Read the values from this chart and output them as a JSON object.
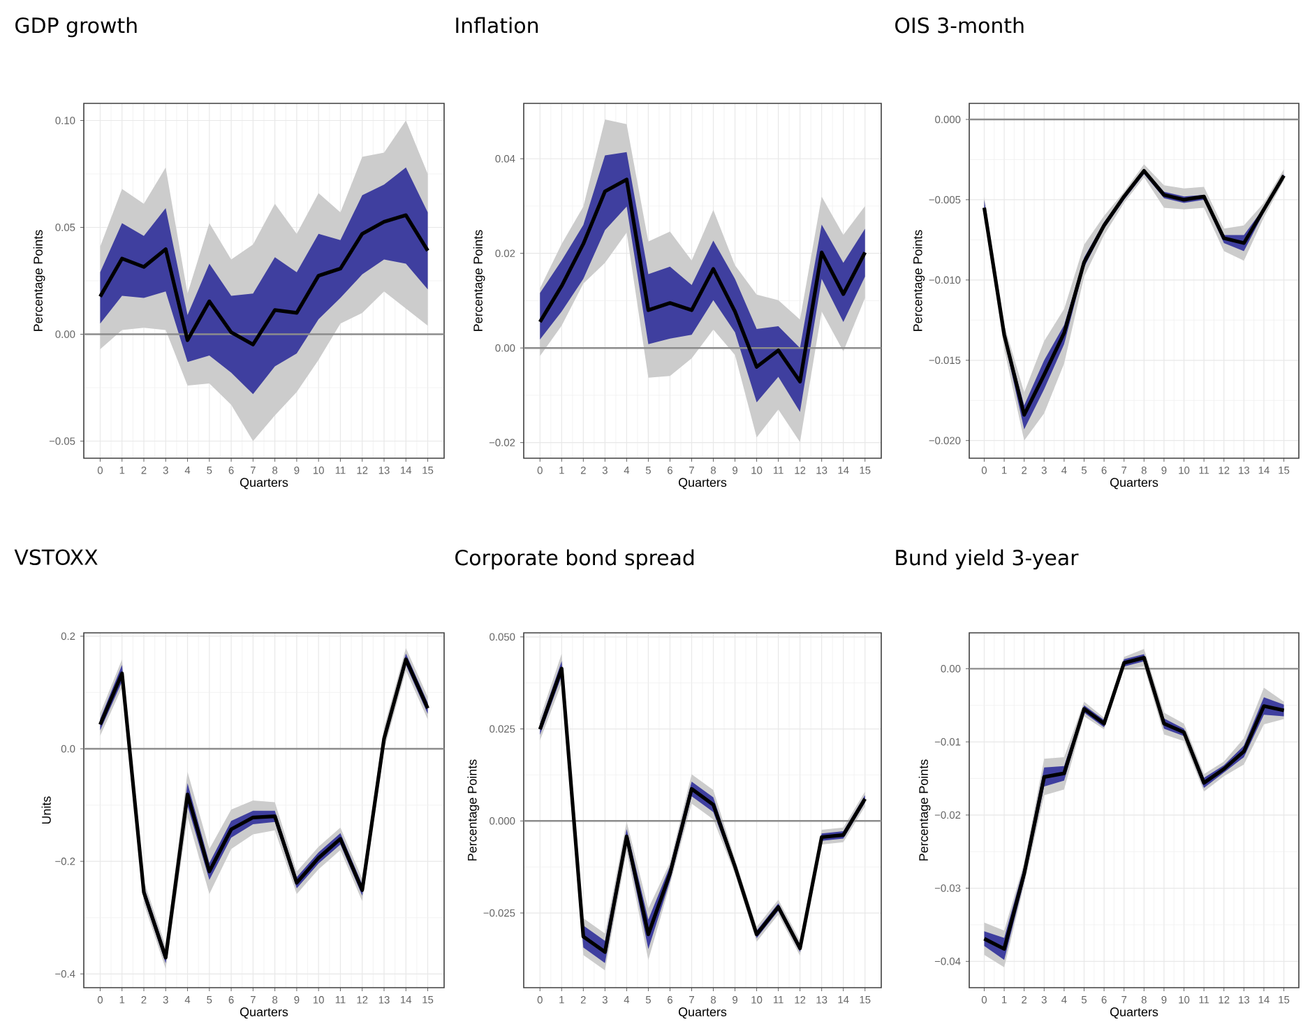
{
  "chart_data": [
    {
      "type": "line",
      "title": "GDP growth",
      "xlabel": "Quarters",
      "ylabel": "Percentage Points",
      "grid": true,
      "x": [
        0,
        1,
        2,
        3,
        4,
        5,
        6,
        7,
        8,
        9,
        10,
        11,
        12,
        13,
        14,
        15
      ],
      "xlim": [
        -0.75,
        15.75
      ],
      "xticks": [
        0,
        1,
        2,
        3,
        4,
        5,
        6,
        7,
        8,
        9,
        10,
        11,
        12,
        13,
        14,
        15
      ],
      "ylim": [
        -0.058,
        0.108
      ],
      "yticks": [
        {
          "value": -0.05,
          "label": "−0.05"
        },
        {
          "value": 0,
          "label": "0.00"
        },
        {
          "value": 0.05,
          "label": "0.05"
        },
        {
          "value": 0.1,
          "label": "0.10"
        }
      ],
      "ref_lines": [
        {
          "axis": "y",
          "value": 0,
          "color": "#8c8c8c"
        }
      ],
      "series": [
        {
          "color": "#cccccc",
          "values": [
            null,
            null,
            null,
            null,
            null,
            null,
            null,
            null,
            null,
            null,
            null,
            null,
            null,
            null,
            null,
            null
          ],
          "lower": [
            -0.007,
            0.002,
            0.003,
            0.002,
            -0.024,
            -0.023,
            -0.033,
            -0.05,
            -0.038,
            -0.027,
            -0.012,
            0.005,
            0.01,
            0.02,
            0.012,
            0.004
          ],
          "upper": [
            0.041,
            0.068,
            0.061,
            0.078,
            0.019,
            0.052,
            0.035,
            0.042,
            0.061,
            0.047,
            0.066,
            0.057,
            0.083,
            0.085,
            0.1,
            0.075
          ]
        },
        {
          "color": "#3f3f9f",
          "values": [
            null,
            null,
            null,
            null,
            null,
            null,
            null,
            null,
            null,
            null,
            null,
            null,
            null,
            null,
            null,
            null
          ],
          "lower": [
            0.005,
            0.018,
            0.017,
            0.02,
            -0.013,
            -0.01,
            -0.018,
            -0.028,
            -0.015,
            -0.009,
            0.007,
            0.017,
            0.028,
            0.035,
            0.033,
            0.021
          ],
          "upper": [
            0.029,
            0.052,
            0.046,
            0.059,
            0.009,
            0.033,
            0.018,
            0.019,
            0.036,
            0.029,
            0.047,
            0.044,
            0.065,
            0.07,
            0.078,
            0.057
          ]
        },
        {
          "color": "#000000",
          "values": [
            0.0176,
            0.0354,
            0.0315,
            0.0398,
            -0.0028,
            0.0154,
            0.0009,
            -0.0048,
            0.0113,
            0.01,
            0.0274,
            0.0307,
            0.047,
            0.0526,
            0.0557,
            0.0391
          ]
        }
      ]
    },
    {
      "type": "line",
      "title": "Inflation",
      "xlabel": "Quarters",
      "ylabel": "Percentage Points",
      "grid": true,
      "x": [
        0,
        1,
        2,
        3,
        4,
        5,
        6,
        7,
        8,
        9,
        10,
        11,
        12,
        13,
        14,
        15
      ],
      "xlim": [
        -0.75,
        15.75
      ],
      "xticks": [
        0,
        1,
        2,
        3,
        4,
        5,
        6,
        7,
        8,
        9,
        10,
        11,
        12,
        13,
        14,
        15
      ],
      "ylim": [
        -0.0233,
        0.0517
      ],
      "yticks": [
        {
          "value": -0.02,
          "label": "−0.02"
        },
        {
          "value": 0,
          "label": "0.00"
        },
        {
          "value": 0.02,
          "label": "0.02"
        },
        {
          "value": 0.04,
          "label": "0.04"
        }
      ],
      "ref_lines": [
        {
          "axis": "y",
          "value": 0,
          "color": "#8c8c8c"
        }
      ],
      "series": [
        {
          "color": "#cccccc",
          "values": [
            null,
            null,
            null,
            null,
            null,
            null,
            null,
            null,
            null,
            null,
            null,
            null,
            null,
            null,
            null,
            null
          ],
          "lower": [
            -0.0017,
            0.0047,
            0.0136,
            0.018,
            0.0244,
            -0.0063,
            -0.0059,
            -0.0022,
            0.0039,
            -0.0015,
            -0.0189,
            -0.013,
            -0.0199,
            0.0077,
            -0.0007,
            0.0106
          ],
          "upper": [
            0.0126,
            0.022,
            0.0299,
            0.0483,
            0.0473,
            0.0225,
            0.0246,
            0.0185,
            0.0292,
            0.0175,
            0.0113,
            0.0101,
            0.006,
            0.032,
            0.0239,
            0.03
          ]
        },
        {
          "color": "#3f3f9f",
          "values": [
            null,
            null,
            null,
            null,
            null,
            null,
            null,
            null,
            null,
            null,
            null,
            null,
            null,
            null,
            null,
            null
          ],
          "lower": [
            0.0018,
            0.0077,
            0.0146,
            0.0249,
            0.0299,
            0.0008,
            0.002,
            0.0028,
            0.0101,
            0.0033,
            -0.0115,
            -0.0061,
            -0.0135,
            0.0146,
            0.0055,
            0.0151
          ],
          "upper": [
            0.0116,
            0.0185,
            0.026,
            0.0407,
            0.0414,
            0.0156,
            0.0172,
            0.0133,
            0.0227,
            0.0146,
            0.004,
            0.0046,
            0.0,
            0.0261,
            0.018,
            0.0252
          ]
        },
        {
          "color": "#000000",
          "values": [
            0.0055,
            0.0131,
            0.022,
            0.0331,
            0.0356,
            0.008,
            0.0095,
            0.008,
            0.0167,
            0.0077,
            -0.004,
            -0.0005,
            -0.0071,
            0.0202,
            0.0114,
            0.0202
          ]
        }
      ]
    },
    {
      "type": "line",
      "title": "OIS 3-month",
      "xlabel": "Quarters",
      "ylabel": "Percentage Points",
      "grid": true,
      "x": [
        0,
        1,
        2,
        3,
        4,
        5,
        6,
        7,
        8,
        9,
        10,
        11,
        12,
        13,
        14,
        15
      ],
      "xlim": [
        -0.75,
        15.75
      ],
      "xticks": [
        0,
        1,
        2,
        3,
        4,
        5,
        6,
        7,
        8,
        9,
        10,
        11,
        12,
        13,
        14,
        15
      ],
      "ylim": [
        -0.0211,
        0.001
      ],
      "yticks": [
        {
          "value": -0.02,
          "label": "−0.020"
        },
        {
          "value": -0.015,
          "label": "−0.015"
        },
        {
          "value": -0.01,
          "label": "−0.010"
        },
        {
          "value": -0.005,
          "label": "−0.005"
        },
        {
          "value": 0,
          "label": "0.000"
        }
      ],
      "ref_lines": [
        {
          "axis": "y",
          "value": 0,
          "color": "#8c8c8c"
        }
      ],
      "series": [
        {
          "color": "#cccccc",
          "values": [
            null,
            null,
            null,
            null,
            null,
            null,
            null,
            null,
            null,
            null,
            null,
            null,
            null,
            null,
            null,
            null
          ],
          "lower": [
            -0.006,
            -0.0143,
            -0.02,
            -0.0183,
            -0.0152,
            -0.0098,
            -0.0072,
            -0.0052,
            -0.0036,
            -0.0055,
            -0.0056,
            -0.0055,
            -0.0082,
            -0.0088,
            -0.0061,
            -0.0038
          ],
          "upper": [
            -0.0048,
            -0.0128,
            -0.017,
            -0.0138,
            -0.0118,
            -0.0078,
            -0.006,
            -0.0045,
            -0.0028,
            -0.0041,
            -0.0043,
            -0.0042,
            -0.0068,
            -0.0066,
            -0.0052,
            -0.0031
          ]
        },
        {
          "color": "#3f3f9f",
          "values": [
            null,
            null,
            null,
            null,
            null,
            null,
            null,
            null,
            null,
            null,
            null,
            null,
            null,
            null,
            null,
            null
          ],
          "lower": [
            -0.0057,
            -0.0137,
            -0.0193,
            -0.0168,
            -0.014,
            -0.0092,
            -0.0068,
            -0.005,
            -0.0034,
            -0.0049,
            -0.0052,
            -0.005,
            -0.0077,
            -0.0082,
            -0.0058,
            -0.0036
          ],
          "upper": [
            -0.005,
            -0.0132,
            -0.0178,
            -0.015,
            -0.0128,
            -0.0086,
            -0.0064,
            -0.0047,
            -0.0031,
            -0.0045,
            -0.0048,
            -0.0047,
            -0.0072,
            -0.0072,
            -0.0055,
            -0.0034
          ]
        },
        {
          "color": "#000000",
          "values": [
            -0.0055,
            -0.0134,
            -0.0184,
            -0.0159,
            -0.0133,
            -0.0089,
            -0.0066,
            -0.0048,
            -0.0032,
            -0.0047,
            -0.005,
            -0.0048,
            -0.0074,
            -0.0077,
            -0.0056,
            -0.0035
          ]
        }
      ]
    },
    {
      "type": "line",
      "title": "VSTOXX",
      "xlabel": "Quarters",
      "ylabel": "Units",
      "grid": true,
      "x": [
        0,
        1,
        2,
        3,
        4,
        5,
        6,
        7,
        8,
        9,
        10,
        11,
        12,
        13,
        14,
        15
      ],
      "xlim": [
        -0.75,
        15.75
      ],
      "xticks": [
        0,
        1,
        2,
        3,
        4,
        5,
        6,
        7,
        8,
        9,
        10,
        11,
        12,
        13,
        14,
        15
      ],
      "ylim": [
        -0.4245,
        0.206
      ],
      "yticks": [
        {
          "value": -0.4,
          "label": "−0.4"
        },
        {
          "value": -0.2,
          "label": "−0.2"
        },
        {
          "value": 0,
          "label": "0.0"
        },
        {
          "value": 0.2,
          "label": "0.2"
        }
      ],
      "ref_lines": [
        {
          "axis": "y",
          "value": 0,
          "color": "#8c8c8c"
        }
      ],
      "series": [
        {
          "color": "#cccccc",
          "values": [
            null,
            null,
            null,
            null,
            null,
            null,
            null,
            null,
            null,
            null,
            null,
            null,
            null,
            null,
            null,
            null
          ],
          "lower": [
            0.023,
            0.109,
            -0.275,
            -0.391,
            -0.121,
            -0.258,
            -0.178,
            -0.152,
            -0.145,
            -0.258,
            -0.214,
            -0.18,
            -0.271,
            -0.002,
            0.139,
            0.052
          ],
          "upper": [
            0.063,
            0.159,
            -0.235,
            -0.351,
            -0.041,
            -0.178,
            -0.108,
            -0.092,
            -0.095,
            -0.218,
            -0.174,
            -0.14,
            -0.231,
            0.038,
            0.179,
            0.092
          ]
        },
        {
          "color": "#3f3f9f",
          "values": [
            null,
            null,
            null,
            null,
            null,
            null,
            null,
            null,
            null,
            null,
            null,
            null,
            null,
            null,
            null,
            null
          ],
          "lower": [
            0.033,
            0.119,
            -0.265,
            -0.381,
            -0.101,
            -0.233,
            -0.158,
            -0.134,
            -0.13,
            -0.248,
            -0.204,
            -0.17,
            -0.261,
            0.008,
            0.149,
            0.062
          ],
          "upper": [
            0.053,
            0.149,
            -0.245,
            -0.361,
            -0.061,
            -0.203,
            -0.128,
            -0.11,
            -0.11,
            -0.228,
            -0.184,
            -0.15,
            -0.241,
            0.028,
            0.169,
            0.082
          ]
        },
        {
          "color": "#000000",
          "values": [
            0.043,
            0.134,
            -0.255,
            -0.371,
            -0.081,
            -0.218,
            -0.143,
            -0.122,
            -0.12,
            -0.238,
            -0.194,
            -0.16,
            -0.251,
            0.018,
            0.159,
            0.072
          ]
        }
      ]
    },
    {
      "type": "line",
      "title": "Corporate bond spread",
      "xlabel": "Quarters",
      "ylabel": "Percentage Points",
      "grid": true,
      "x": [
        0,
        1,
        2,
        3,
        4,
        5,
        6,
        7,
        8,
        9,
        10,
        11,
        12,
        13,
        14,
        15
      ],
      "xlim": [
        -0.75,
        15.75
      ],
      "xticks": [
        0,
        1,
        2,
        3,
        4,
        5,
        6,
        7,
        8,
        9,
        10,
        11,
        12,
        13,
        14,
        15
      ],
      "ylim": [
        -0.0453,
        0.0511
      ],
      "yticks": [
        {
          "value": -0.025,
          "label": "−0.025"
        },
        {
          "value": 0,
          "label": "0.000"
        },
        {
          "value": 0.025,
          "label": "0.025"
        },
        {
          "value": 0.05,
          "label": "0.050"
        }
      ],
      "ref_lines": [
        {
          "axis": "y",
          "value": 0,
          "color": "#8c8c8c"
        }
      ],
      "series": [
        {
          "color": "#cccccc",
          "values": [
            null,
            null,
            null,
            null,
            null,
            null,
            null,
            null,
            null,
            null,
            null,
            null,
            null,
            null,
            null,
            null
          ],
          "lower": [
            0.0219,
            0.0374,
            -0.0364,
            -0.0406,
            -0.0082,
            -0.0378,
            -0.0173,
            0.0047,
            0.0004,
            -0.0144,
            -0.0328,
            -0.0254,
            -0.0366,
            -0.0064,
            -0.0058,
            0.004
          ],
          "upper": [
            0.0279,
            0.0454,
            -0.0264,
            -0.0306,
            -0.0002,
            -0.0238,
            -0.0113,
            0.0127,
            0.0084,
            -0.0104,
            -0.0288,
            -0.0214,
            -0.0326,
            -0.0024,
            -0.0018,
            0.008
          ]
        },
        {
          "color": "#3f3f9f",
          "values": [
            null,
            null,
            null,
            null,
            null,
            null,
            null,
            null,
            null,
            null,
            null,
            null,
            null,
            null,
            null,
            null
          ],
          "lower": [
            0.0234,
            0.0394,
            -0.0344,
            -0.0386,
            -0.0062,
            -0.0348,
            -0.0163,
            0.0067,
            0.0024,
            -0.0134,
            -0.0318,
            -0.0244,
            -0.0356,
            -0.0054,
            -0.0048,
            0.005
          ],
          "upper": [
            0.0264,
            0.0434,
            -0.0284,
            -0.0326,
            -0.0022,
            -0.0268,
            -0.0123,
            0.0107,
            0.0064,
            -0.0114,
            -0.0298,
            -0.0224,
            -0.0336,
            -0.0034,
            -0.0028,
            0.007
          ]
        },
        {
          "color": "#000000",
          "values": [
            0.0249,
            0.0414,
            -0.0314,
            -0.0356,
            -0.0042,
            -0.0308,
            -0.0143,
            0.0087,
            0.0044,
            -0.0124,
            -0.0308,
            -0.0234,
            -0.0346,
            -0.0044,
            -0.0038,
            0.006
          ]
        }
      ]
    },
    {
      "type": "line",
      "title": "Bund yield 3-year",
      "xlabel": "Quarters",
      "ylabel": "Percentage Points",
      "grid": true,
      "x": [
        0,
        1,
        2,
        3,
        4,
        5,
        6,
        7,
        8,
        9,
        10,
        11,
        12,
        13,
        14,
        15
      ],
      "xlim": [
        -0.75,
        15.75
      ],
      "xticks": [
        0,
        1,
        2,
        3,
        4,
        5,
        6,
        7,
        8,
        9,
        10,
        11,
        12,
        13,
        14,
        15
      ],
      "ylim": [
        -0.0436,
        0.0049
      ],
      "yticks": [
        {
          "value": -0.04,
          "label": "−0.04"
        },
        {
          "value": -0.03,
          "label": "−0.03"
        },
        {
          "value": -0.02,
          "label": "−0.02"
        },
        {
          "value": -0.01,
          "label": "−0.01"
        },
        {
          "value": 0,
          "label": "0.00"
        }
      ],
      "ref_lines": [
        {
          "axis": "y",
          "value": 0,
          "color": "#8c8c8c"
        }
      ],
      "series": [
        {
          "color": "#cccccc",
          "values": [
            null,
            null,
            null,
            null,
            null,
            null,
            null,
            null,
            null,
            null,
            null,
            null,
            null,
            null,
            null,
            null
          ],
          "lower": [
            -0.0391,
            -0.0408,
            -0.0295,
            -0.0173,
            -0.0165,
            -0.0065,
            -0.0083,
            0.0,
            0.0003,
            -0.009,
            -0.0099,
            -0.0168,
            -0.0147,
            -0.0131,
            -0.0076,
            -0.0069
          ],
          "upper": [
            -0.0347,
            -0.0358,
            -0.0265,
            -0.0123,
            -0.0121,
            -0.0045,
            -0.0067,
            0.0016,
            0.0027,
            -0.006,
            -0.0075,
            -0.0144,
            -0.0127,
            -0.0095,
            -0.0026,
            -0.0045
          ]
        },
        {
          "color": "#3f3f9f",
          "values": [
            null,
            null,
            null,
            null,
            null,
            null,
            null,
            null,
            null,
            null,
            null,
            null,
            null,
            null,
            null,
            null
          ],
          "lower": [
            -0.0379,
            -0.0398,
            -0.029,
            -0.0161,
            -0.0153,
            -0.006,
            -0.008,
            0.0003,
            0.001,
            -0.0082,
            -0.0092,
            -0.0163,
            -0.0142,
            -0.0121,
            -0.0063,
            -0.0065
          ],
          "upper": [
            -0.0359,
            -0.0368,
            -0.027,
            -0.0135,
            -0.0133,
            -0.005,
            -0.007,
            0.0013,
            0.002,
            -0.0068,
            -0.0082,
            -0.0149,
            -0.0132,
            -0.0105,
            -0.0039,
            -0.0049
          ]
        },
        {
          "color": "#000000",
          "values": [
            -0.0369,
            -0.0383,
            -0.028,
            -0.0148,
            -0.0143,
            -0.0055,
            -0.0075,
            0.0008,
            0.0015,
            -0.0075,
            -0.0087,
            -0.0156,
            -0.0137,
            -0.0113,
            -0.0051,
            -0.0057
          ]
        }
      ]
    }
  ]
}
